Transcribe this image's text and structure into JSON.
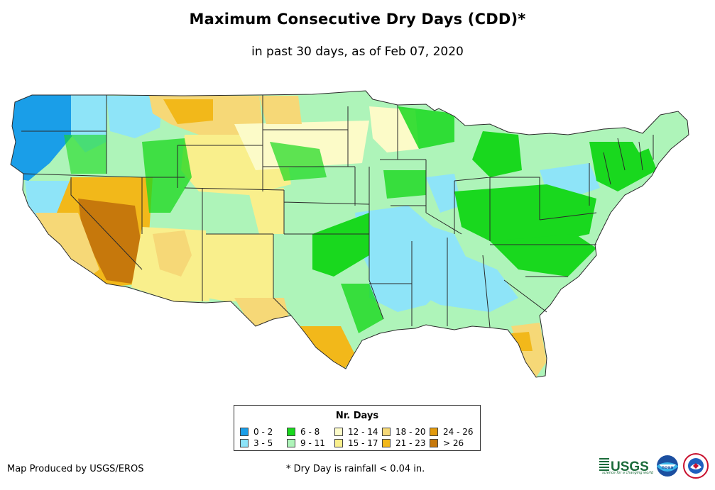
{
  "title": "Maximum Consecutive Dry Days (CDD)*",
  "subtitle": "in past 30 days, as of Feb 07, 2020",
  "legend": {
    "title": "Nr. Days",
    "items": [
      {
        "label": "0 - 2",
        "color": "#1a9ee8"
      },
      {
        "label": "3 - 5",
        "color": "#8ee4f8"
      },
      {
        "label": "6 - 8",
        "color": "#19d81e"
      },
      {
        "label": "9 - 11",
        "color": "#aef4b9"
      },
      {
        "label": "12 - 14",
        "color": "#fcfbc8"
      },
      {
        "label": "15 - 17",
        "color": "#f9ef8c"
      },
      {
        "label": "18 - 20",
        "color": "#f6d877"
      },
      {
        "label": "21 - 23",
        "color": "#f2b81a"
      },
      {
        "label": "24 - 26",
        "color": "#e29a0d"
      },
      {
        "label": "> 26",
        "color": "#c6780c"
      }
    ]
  },
  "credit": "Map Produced by USGS/EROS",
  "footnote": "* Dry Day is rainfall < 0.04 in.",
  "logos": {
    "usgs_text": "USGS",
    "usgs_tagline": "science for a changing world",
    "noaa_text": "noaa"
  },
  "colors": {
    "state_border": "#2a2a2a"
  }
}
